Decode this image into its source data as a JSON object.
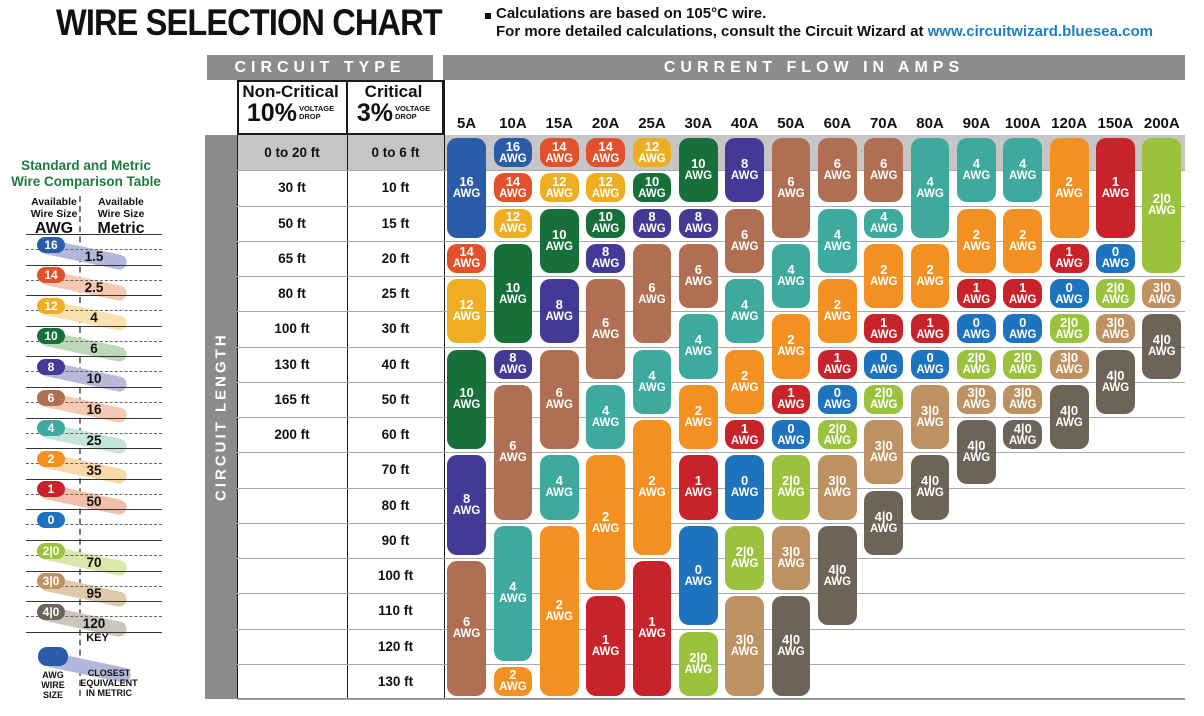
{
  "page": {
    "title": "WIRE SELECTION CHART",
    "note_line1": "Calculations are based on 105°C wire.",
    "note_line2_prefix": "For more detailed calculations, consult the Circuit Wizard at ",
    "note_link": "www.circuitwizard.bluesea.com"
  },
  "chart_data": {
    "type": "table",
    "title": "WIRE SELECTION CHART",
    "headers": {
      "circuit_type": "CIRCUIT TYPE",
      "current_flow": "CURRENT FLOW IN AMPS",
      "non_critical": "Non-Critical",
      "non_critical_pct": "10%",
      "critical": "Critical",
      "critical_pct": "3%",
      "voltage_drop_1": "VOLTAGE",
      "voltage_drop_2": "DROP",
      "circuit_length": "CIRCUIT LENGTH"
    },
    "amp_columns": [
      "5A",
      "10A",
      "15A",
      "20A",
      "25A",
      "30A",
      "40A",
      "50A",
      "60A",
      "70A",
      "80A",
      "90A",
      "100A",
      "120A",
      "150A",
      "200A"
    ],
    "row_labels": {
      "non_critical": [
        "0 to 20 ft",
        "30 ft",
        "50 ft",
        "65 ft",
        "80 ft",
        "100 ft",
        "130 ft",
        "165 ft",
        "200 ft",
        "",
        "",
        "",
        "",
        "",
        "",
        ""
      ],
      "critical": [
        "0 to 6 ft",
        "10 ft",
        "15 ft",
        "20 ft",
        "25 ft",
        "30 ft",
        "40 ft",
        "50 ft",
        "60 ft",
        "70 ft",
        "80 ft",
        "90 ft",
        "100 ft",
        "110 ft",
        "120 ft",
        "130 ft"
      ]
    },
    "unit_suffix": "AWG",
    "awg_colors": {
      "16": "#2a5caa",
      "14": "#e2512b",
      "12": "#efae21",
      "10": "#17703a",
      "8": "#443a96",
      "6": "#b06f52",
      "4": "#3daa9d",
      "2": "#f29022",
      "1": "#c8232b",
      "0": "#1e73bf",
      "2|0": "#9ac23c",
      "3|0": "#bd9161",
      "4|0": "#6d6458"
    },
    "columns": [
      {
        "amp": "5A",
        "runs": [
          {
            "awg": "16",
            "from": 1,
            "to": 3
          },
          {
            "awg": "14",
            "from": 4,
            "to": 4
          },
          {
            "awg": "12",
            "from": 5,
            "to": 6
          },
          {
            "awg": "10",
            "from": 7,
            "to": 9
          },
          {
            "awg": "8",
            "from": 10,
            "to": 12
          },
          {
            "awg": "6",
            "from": 13,
            "to": 16
          }
        ]
      },
      {
        "amp": "10A",
        "runs": [
          {
            "awg": "16",
            "from": 1,
            "to": 1
          },
          {
            "awg": "14",
            "from": 2,
            "to": 2
          },
          {
            "awg": "12",
            "from": 3,
            "to": 3
          },
          {
            "awg": "10",
            "from": 4,
            "to": 6
          },
          {
            "awg": "8",
            "from": 7,
            "to": 7
          },
          {
            "awg": "6",
            "from": 8,
            "to": 11
          },
          {
            "awg": "4",
            "from": 12,
            "to": 15
          },
          {
            "awg": "2",
            "from": 16,
            "to": 16
          }
        ]
      },
      {
        "amp": "15A",
        "runs": [
          {
            "awg": "14",
            "from": 1,
            "to": 1
          },
          {
            "awg": "12",
            "from": 2,
            "to": 2
          },
          {
            "awg": "10",
            "from": 3,
            "to": 4
          },
          {
            "awg": "8",
            "from": 5,
            "to": 6
          },
          {
            "awg": "6",
            "from": 7,
            "to": 9
          },
          {
            "awg": "4",
            "from": 10,
            "to": 11
          },
          {
            "awg": "2",
            "from": 12,
            "to": 16
          }
        ]
      },
      {
        "amp": "20A",
        "runs": [
          {
            "awg": "14",
            "from": 1,
            "to": 1
          },
          {
            "awg": "12",
            "from": 2,
            "to": 2
          },
          {
            "awg": "10",
            "from": 3,
            "to": 3
          },
          {
            "awg": "8",
            "from": 4,
            "to": 4
          },
          {
            "awg": "6",
            "from": 5,
            "to": 7
          },
          {
            "awg": "4",
            "from": 8,
            "to": 9
          },
          {
            "awg": "2",
            "from": 10,
            "to": 13
          },
          {
            "awg": "1",
            "from": 14,
            "to": 16
          }
        ]
      },
      {
        "amp": "25A",
        "runs": [
          {
            "awg": "12",
            "from": 1,
            "to": 1
          },
          {
            "awg": "10",
            "from": 2,
            "to": 2
          },
          {
            "awg": "8",
            "from": 3,
            "to": 3
          },
          {
            "awg": "6",
            "from": 4,
            "to": 6
          },
          {
            "awg": "4",
            "from": 7,
            "to": 8
          },
          {
            "awg": "2",
            "from": 9,
            "to": 12
          },
          {
            "awg": "1",
            "from": 13,
            "to": 16
          }
        ]
      },
      {
        "amp": "30A",
        "runs": [
          {
            "awg": "10",
            "from": 1,
            "to": 2
          },
          {
            "awg": "8",
            "from": 3,
            "to": 3
          },
          {
            "awg": "6",
            "from": 4,
            "to": 5
          },
          {
            "awg": "4",
            "from": 6,
            "to": 7
          },
          {
            "awg": "2",
            "from": 8,
            "to": 9
          },
          {
            "awg": "1",
            "from": 10,
            "to": 11
          },
          {
            "awg": "0",
            "from": 12,
            "to": 14
          },
          {
            "awg": "2|0",
            "from": 15,
            "to": 16
          }
        ]
      },
      {
        "amp": "40A",
        "runs": [
          {
            "awg": "8",
            "from": 1,
            "to": 2
          },
          {
            "awg": "6",
            "from": 3,
            "to": 4
          },
          {
            "awg": "4",
            "from": 5,
            "to": 6
          },
          {
            "awg": "2",
            "from": 7,
            "to": 8
          },
          {
            "awg": "1",
            "from": 9,
            "to": 9
          },
          {
            "awg": "0",
            "from": 10,
            "to": 11
          },
          {
            "awg": "2|0",
            "from": 12,
            "to": 13
          },
          {
            "awg": "3|0",
            "from": 14,
            "to": 16
          }
        ]
      },
      {
        "amp": "50A",
        "runs": [
          {
            "awg": "6",
            "from": 1,
            "to": 3
          },
          {
            "awg": "4",
            "from": 4,
            "to": 5
          },
          {
            "awg": "2",
            "from": 6,
            "to": 7
          },
          {
            "awg": "1",
            "from": 8,
            "to": 8
          },
          {
            "awg": "0",
            "from": 9,
            "to": 9
          },
          {
            "awg": "2|0",
            "from": 10,
            "to": 11
          },
          {
            "awg": "3|0",
            "from": 12,
            "to": 13
          },
          {
            "awg": "4|0",
            "from": 14,
            "to": 16
          }
        ]
      },
      {
        "amp": "60A",
        "runs": [
          {
            "awg": "6",
            "from": 1,
            "to": 2
          },
          {
            "awg": "4",
            "from": 3,
            "to": 4
          },
          {
            "awg": "2",
            "from": 5,
            "to": 6
          },
          {
            "awg": "1",
            "from": 7,
            "to": 7
          },
          {
            "awg": "0",
            "from": 8,
            "to": 8
          },
          {
            "awg": "2|0",
            "from": 9,
            "to": 9
          },
          {
            "awg": "3|0",
            "from": 10,
            "to": 11
          },
          {
            "awg": "4|0",
            "from": 12,
            "to": 14
          }
        ]
      },
      {
        "amp": "70A",
        "runs": [
          {
            "awg": "6",
            "from": 1,
            "to": 2
          },
          {
            "awg": "4",
            "from": 3,
            "to": 3
          },
          {
            "awg": "2",
            "from": 4,
            "to": 5
          },
          {
            "awg": "1",
            "from": 6,
            "to": 6
          },
          {
            "awg": "0",
            "from": 7,
            "to": 7
          },
          {
            "awg": "2|0",
            "from": 8,
            "to": 8
          },
          {
            "awg": "3|0",
            "from": 9,
            "to": 10
          },
          {
            "awg": "4|0",
            "from": 11,
            "to": 12
          }
        ]
      },
      {
        "amp": "80A",
        "runs": [
          {
            "awg": "4",
            "from": 1,
            "to": 3
          },
          {
            "awg": "2",
            "from": 4,
            "to": 5
          },
          {
            "awg": "1",
            "from": 6,
            "to": 6
          },
          {
            "awg": "0",
            "from": 7,
            "to": 7
          },
          {
            "awg": "3|0",
            "from": 8,
            "to": 9
          },
          {
            "awg": "4|0",
            "from": 10,
            "to": 11
          }
        ]
      },
      {
        "amp": "90A",
        "runs": [
          {
            "awg": "4",
            "from": 1,
            "to": 2
          },
          {
            "awg": "2",
            "from": 3,
            "to": 4
          },
          {
            "awg": "1",
            "from": 5,
            "to": 5
          },
          {
            "awg": "0",
            "from": 6,
            "to": 6
          },
          {
            "awg": "2|0",
            "from": 7,
            "to": 7
          },
          {
            "awg": "3|0",
            "from": 8,
            "to": 8
          },
          {
            "awg": "4|0",
            "from": 9,
            "to": 10
          }
        ]
      },
      {
        "amp": "100A",
        "runs": [
          {
            "awg": "4",
            "from": 1,
            "to": 2
          },
          {
            "awg": "2",
            "from": 3,
            "to": 4
          },
          {
            "awg": "1",
            "from": 5,
            "to": 5
          },
          {
            "awg": "0",
            "from": 6,
            "to": 6
          },
          {
            "awg": "2|0",
            "from": 7,
            "to": 7
          },
          {
            "awg": "3|0",
            "from": 8,
            "to": 8
          },
          {
            "awg": "4|0",
            "from": 9,
            "to": 9
          }
        ]
      },
      {
        "amp": "120A",
        "runs": [
          {
            "awg": "2",
            "from": 1,
            "to": 3
          },
          {
            "awg": "1",
            "from": 4,
            "to": 4
          },
          {
            "awg": "0",
            "from": 5,
            "to": 5
          },
          {
            "awg": "2|0",
            "from": 6,
            "to": 6
          },
          {
            "awg": "3|0",
            "from": 7,
            "to": 7
          },
          {
            "awg": "4|0",
            "from": 8,
            "to": 9
          }
        ]
      },
      {
        "amp": "150A",
        "runs": [
          {
            "awg": "1",
            "from": 1,
            "to": 3
          },
          {
            "awg": "0",
            "from": 4,
            "to": 4
          },
          {
            "awg": "2|0",
            "from": 5,
            "to": 5
          },
          {
            "awg": "3|0",
            "from": 6,
            "to": 6
          },
          {
            "awg": "4|0",
            "from": 7,
            "to": 8
          }
        ]
      },
      {
        "amp": "200A",
        "runs": [
          {
            "awg": "2|0",
            "from": 1,
            "to": 4
          },
          {
            "awg": "3|0",
            "from": 5,
            "to": 5
          },
          {
            "awg": "4|0",
            "from": 6,
            "to": 7
          }
        ]
      }
    ]
  },
  "comparison": {
    "title_line1": "Standard and Metric",
    "title_line2": "Wire Comparison Table",
    "left_header_1": "Available",
    "left_header_2": "Wire Size",
    "left_header_3": "AWG",
    "right_header_1": "Available",
    "right_header_2": "Wire Size",
    "right_header_3": "Metric",
    "rows": [
      {
        "awg": "16",
        "metric": "1.5"
      },
      {
        "awg": "14",
        "metric": "2.5"
      },
      {
        "awg": "12",
        "metric": "4"
      },
      {
        "awg": "10",
        "metric": "6"
      },
      {
        "awg": "8",
        "metric": "10"
      },
      {
        "awg": "6",
        "metric": "16"
      },
      {
        "awg": "4",
        "metric": "25"
      },
      {
        "awg": "2",
        "metric": "35"
      },
      {
        "awg": "1",
        "metric": "50"
      },
      {
        "awg": "0",
        "metric": null
      },
      {
        "awg": "2|0",
        "metric": "70"
      },
      {
        "awg": "3|0",
        "metric": "95"
      },
      {
        "awg": "4|0",
        "metric": "120"
      }
    ],
    "band_colors": {
      "16": "#b2b8dc",
      "14": "#f6c9b2",
      "12": "#f9e2ae",
      "10": "#bcd8b8",
      "8": "#b8b8da",
      "6": "#f6c9b2",
      "4": "#c4e4dc",
      "2": "#f9d7a7",
      "1": "#f4bea8",
      "2|0": "#d9e8aa",
      "3|0": "#decaa8",
      "4|0": "#cbc5bd"
    },
    "key": {
      "label": "KEY",
      "pill_caption_1": "AWG",
      "pill_caption_2": "WIRE",
      "pill_caption_3": "SIZE",
      "band_caption_1": "CLOSEST",
      "band_caption_2": "EQUIVALENT",
      "band_caption_3": "IN METRIC",
      "pill_color": "#2a5caa",
      "band_color": "#b2b8dc"
    }
  },
  "colors": {
    "header_bar": "#8c8c8c",
    "row1_band": "#c6c6c6",
    "grid_line": "#a8a8a8",
    "title_green": "#1e7b3d",
    "link_blue": "#1a80c4"
  }
}
